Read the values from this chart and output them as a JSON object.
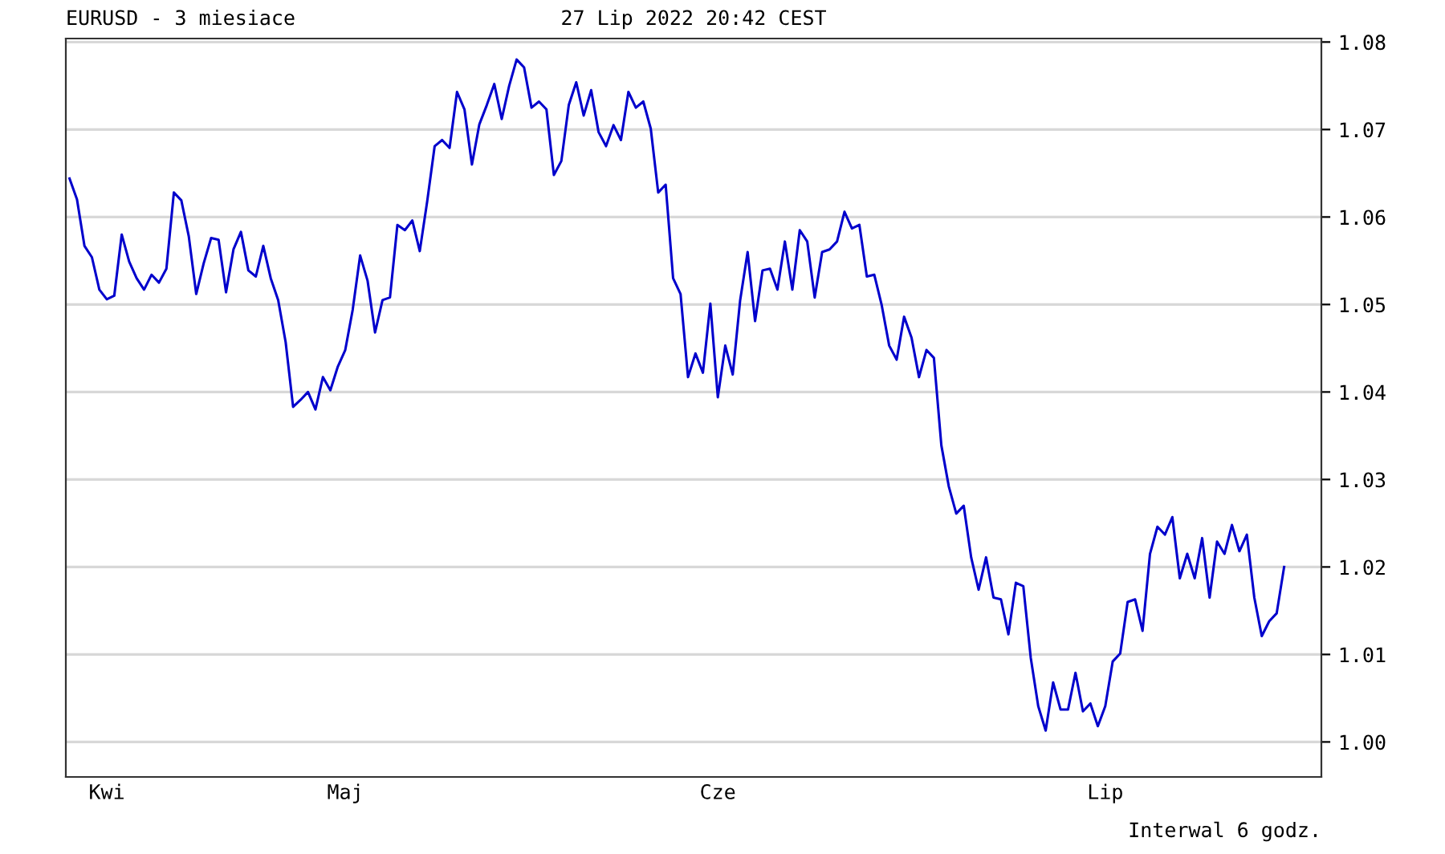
{
  "chart_data": {
    "type": "line",
    "title": "EURUSD - 3 miesiace",
    "subtitle": "27 Lip 2022 20:42 CEST",
    "annotations": [
      "Interwal 6 godz."
    ],
    "categories": [
      null,
      null,
      null,
      null,
      null,
      "Kwi",
      null,
      null,
      null,
      null,
      null,
      null,
      null,
      null,
      null,
      null,
      null,
      null,
      null,
      null,
      null,
      null,
      null,
      null,
      null,
      null,
      null,
      null,
      null,
      null,
      null,
      null,
      null,
      null,
      null,
      null,
      null,
      "Maj",
      null,
      null,
      null,
      null,
      null,
      null,
      null,
      null,
      null,
      null,
      null,
      null,
      null,
      null,
      null,
      null,
      null,
      null,
      null,
      null,
      null,
      null,
      null,
      null,
      null,
      null,
      null,
      null,
      null,
      null,
      null,
      null,
      null,
      null,
      null,
      null,
      null,
      null,
      null,
      null,
      null,
      null,
      null,
      null,
      null,
      null,
      null,
      null,
      null,
      "Cze",
      null,
      null,
      null,
      null,
      null,
      null,
      null,
      null,
      null,
      null,
      null,
      null,
      null,
      null,
      null,
      null,
      null,
      null,
      null,
      null,
      null,
      null,
      null,
      null,
      null,
      null,
      null,
      null,
      null,
      null,
      null,
      null,
      null,
      null,
      null,
      null,
      null,
      null,
      null,
      null,
      null,
      null,
      null,
      null,
      null,
      null,
      null,
      null,
      null,
      null,
      null,
      "Lip",
      null,
      null,
      null,
      null,
      null,
      null,
      null,
      null,
      null,
      null,
      null,
      null,
      null,
      null,
      null,
      null,
      null,
      null,
      null,
      null,
      null,
      null,
      null,
      null
    ],
    "series": [
      {
        "color": "#0000cc",
        "values": [
          1.0644,
          1.062,
          1.0567,
          1.0554,
          1.0517,
          1.0506,
          1.051,
          1.058,
          1.0549,
          1.053,
          1.0517,
          1.0534,
          1.0525,
          1.0541,
          1.0628,
          1.0619,
          1.0578,
          1.0512,
          1.0547,
          1.0576,
          1.0574,
          1.0514,
          1.0563,
          1.0583,
          1.0539,
          1.0532,
          1.0567,
          1.053,
          1.0505,
          1.0457,
          1.0383,
          1.0391,
          1.04,
          1.038,
          1.0417,
          1.0402,
          1.0429,
          1.0448,
          1.0494,
          1.0556,
          1.0527,
          1.0468,
          1.0505,
          1.0508,
          1.0591,
          1.0585,
          1.0596,
          1.0561,
          1.0618,
          1.0681,
          1.0688,
          1.0679,
          1.0743,
          1.0723,
          1.066,
          1.0706,
          1.0728,
          1.0752,
          1.0712,
          1.075,
          1.078,
          1.0771,
          1.0725,
          1.0732,
          1.0723,
          1.0648,
          1.0664,
          1.0728,
          1.0754,
          1.0716,
          1.0745,
          1.0697,
          1.0681,
          1.0705,
          1.0688,
          1.0743,
          1.0725,
          1.0732,
          1.0701,
          1.0628,
          1.0637,
          1.053,
          1.0512,
          1.0417,
          1.0444,
          1.0422,
          1.0501,
          1.0394,
          1.0453,
          1.042,
          1.0505,
          1.056,
          1.0481,
          1.0539,
          1.0541,
          1.0517,
          1.0572,
          1.0517,
          1.0585,
          1.0572,
          1.0508,
          1.056,
          1.0563,
          1.0572,
          1.0606,
          1.0587,
          1.0591,
          1.0532,
          1.0534,
          1.0499,
          1.0453,
          1.0437,
          1.0486,
          1.0462,
          1.0417,
          1.0448,
          1.0439,
          1.0339,
          1.0292,
          1.0261,
          1.027,
          1.0211,
          1.0174,
          1.0211,
          1.0165,
          1.0163,
          1.0123,
          1.0182,
          1.0178,
          1.0096,
          1.0041,
          1.0013,
          1.0068,
          1.0037,
          1.0037,
          1.0079,
          1.0035,
          1.0044,
          1.0018,
          1.0041,
          1.0092,
          1.0101,
          1.016,
          1.0163,
          1.0127,
          1.0215,
          1.0246,
          1.0237,
          1.0257,
          1.0187,
          1.0215,
          1.0187,
          1.0233,
          1.0165,
          1.0229,
          1.0215,
          1.0248,
          1.0218,
          1.0237,
          1.0165,
          1.0121,
          1.0138,
          1.0147,
          1.02
        ]
      }
    ],
    "ylim": [
      0.996,
      1.0804
    ],
    "yticks": [
      {
        "value": 1.0,
        "label": "1.00"
      },
      {
        "value": 1.01,
        "label": "1.01"
      },
      {
        "value": 1.02,
        "label": "1.02"
      },
      {
        "value": 1.03,
        "label": "1.03"
      },
      {
        "value": 1.04,
        "label": "1.04"
      },
      {
        "value": 1.05,
        "label": "1.05"
      },
      {
        "value": 1.06,
        "label": "1.06"
      },
      {
        "value": 1.07,
        "label": "1.07"
      },
      {
        "value": 1.08,
        "label": "1.08"
      }
    ],
    "grid": "y",
    "legend": false,
    "marker": "none",
    "line_style": "solid"
  }
}
